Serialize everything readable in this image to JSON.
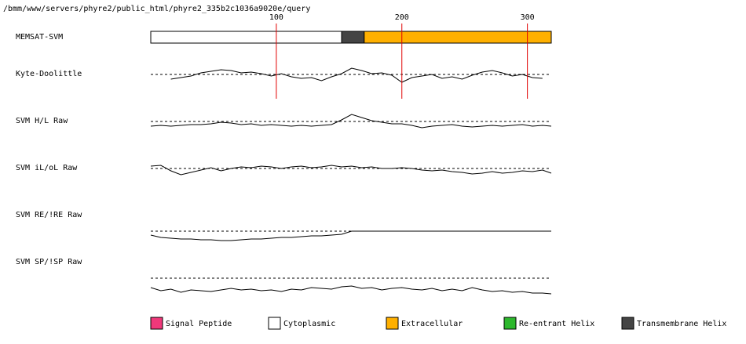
{
  "path": "/bmm/www/servers/phyre2/public_html/phyre2_335b2c1036a9020e/query",
  "chart_data": {
    "type": "track",
    "xlim": [
      0,
      319
    ],
    "xticks": [
      100,
      200,
      300
    ],
    "grid_color": "#e00000",
    "segments": {
      "name": "MEMSAT-SVM",
      "regions": [
        {
          "start": 0,
          "end": 152,
          "color": "#ffffff"
        },
        {
          "start": 152,
          "end": 170,
          "color": "#444444"
        },
        {
          "start": 170,
          "end": 319,
          "color": "#ffb000"
        }
      ]
    },
    "x": [
      0,
      8,
      16,
      24,
      32,
      40,
      48,
      56,
      64,
      72,
      80,
      88,
      96,
      104,
      112,
      120,
      128,
      136,
      144,
      152,
      160,
      168,
      176,
      184,
      192,
      200,
      208,
      216,
      224,
      232,
      240,
      248,
      256,
      264,
      272,
      280,
      288,
      296,
      304,
      312,
      319
    ],
    "tracks": [
      {
        "name": "Kyte-Doolittle",
        "reference": 0,
        "ylim": [
          -2,
          1.5
        ],
        "values": [
          null,
          null,
          -0.6,
          -0.4,
          -0.2,
          0.2,
          0.4,
          0.6,
          0.5,
          0.2,
          0.3,
          0.1,
          -0.2,
          0.1,
          -0.3,
          -0.5,
          -0.4,
          -0.8,
          -0.3,
          0.1,
          0.8,
          0.5,
          0.1,
          0.2,
          -0.1,
          -1.0,
          -0.4,
          -0.2,
          0,
          -0.5,
          -0.3,
          -0.6,
          -0.1,
          0.3,
          0.5,
          0.2,
          -0.2,
          0,
          -0.4,
          -0.5,
          null
        ]
      },
      {
        "name": "SVM H/L Raw",
        "reference": 0,
        "ylim": [
          -2,
          1.5
        ],
        "values": [
          -0.6,
          -0.5,
          -0.6,
          -0.5,
          -0.4,
          -0.4,
          -0.3,
          -0.1,
          -0.2,
          -0.4,
          -0.3,
          -0.5,
          -0.4,
          -0.5,
          -0.6,
          -0.5,
          -0.6,
          -0.5,
          -0.4,
          0.2,
          0.9,
          0.5,
          0.1,
          -0.1,
          -0.3,
          -0.3,
          -0.5,
          -0.8,
          -0.6,
          -0.5,
          -0.4,
          -0.6,
          -0.7,
          -0.6,
          -0.5,
          -0.6,
          -0.5,
          -0.4,
          -0.6,
          -0.5,
          -0.6
        ]
      },
      {
        "name": "SVM iL/oL Raw",
        "reference": 0,
        "ylim": [
          -2,
          1.5
        ],
        "values": [
          0.3,
          0.4,
          -0.3,
          -0.8,
          -0.5,
          -0.2,
          0.1,
          -0.3,
          0,
          0.2,
          0.1,
          0.3,
          0.2,
          0,
          0.2,
          0.3,
          0.1,
          0.2,
          0.4,
          0.2,
          0.3,
          0.1,
          0.2,
          0,
          0,
          0.1,
          0,
          -0.2,
          -0.3,
          -0.2,
          -0.4,
          -0.5,
          -0.7,
          -0.6,
          -0.4,
          -0.6,
          -0.5,
          -0.3,
          -0.4,
          -0.2,
          -0.6
        ]
      },
      {
        "name": "SVM RE/!RE Raw",
        "reference": 0,
        "ylim": [
          -2,
          1.5
        ],
        "values": [
          -0.5,
          -0.8,
          -0.9,
          -1.0,
          -1.0,
          -1.1,
          -1.1,
          -1.2,
          -1.2,
          -1.1,
          -1.0,
          -1.0,
          -0.9,
          -0.8,
          -0.8,
          -0.7,
          -0.6,
          -0.6,
          -0.5,
          -0.4,
          0,
          0,
          0,
          0,
          0,
          0,
          0,
          0,
          0,
          0,
          0,
          0,
          0,
          0,
          0,
          0,
          0,
          0,
          0,
          0,
          0
        ]
      },
      {
        "name": "SVM SP/!SP Raw",
        "reference": 0,
        "ylim": [
          -2,
          1.5
        ],
        "values": [
          -1.2,
          -1.6,
          -1.4,
          -1.8,
          -1.5,
          -1.6,
          -1.7,
          -1.5,
          -1.3,
          -1.5,
          -1.4,
          -1.6,
          -1.5,
          -1.7,
          -1.4,
          -1.5,
          -1.2,
          -1.3,
          -1.4,
          -1.1,
          -1.0,
          -1.3,
          -1.2,
          -1.5,
          -1.3,
          -1.2,
          -1.4,
          -1.5,
          -1.3,
          -1.6,
          -1.4,
          -1.6,
          -1.2,
          -1.5,
          -1.7,
          -1.6,
          -1.8,
          -1.7,
          -1.9,
          -1.9,
          -2.0
        ]
      }
    ],
    "legend": [
      {
        "name": "Signal Peptide",
        "color": "#f0387a"
      },
      {
        "name": "Cytoplasmic",
        "color": "#ffffff"
      },
      {
        "name": "Extracellular",
        "color": "#ffb000"
      },
      {
        "name": "Re-entrant Helix",
        "color": "#2db82d"
      },
      {
        "name": "Transmembrane Helix",
        "color": "#444444"
      }
    ]
  }
}
